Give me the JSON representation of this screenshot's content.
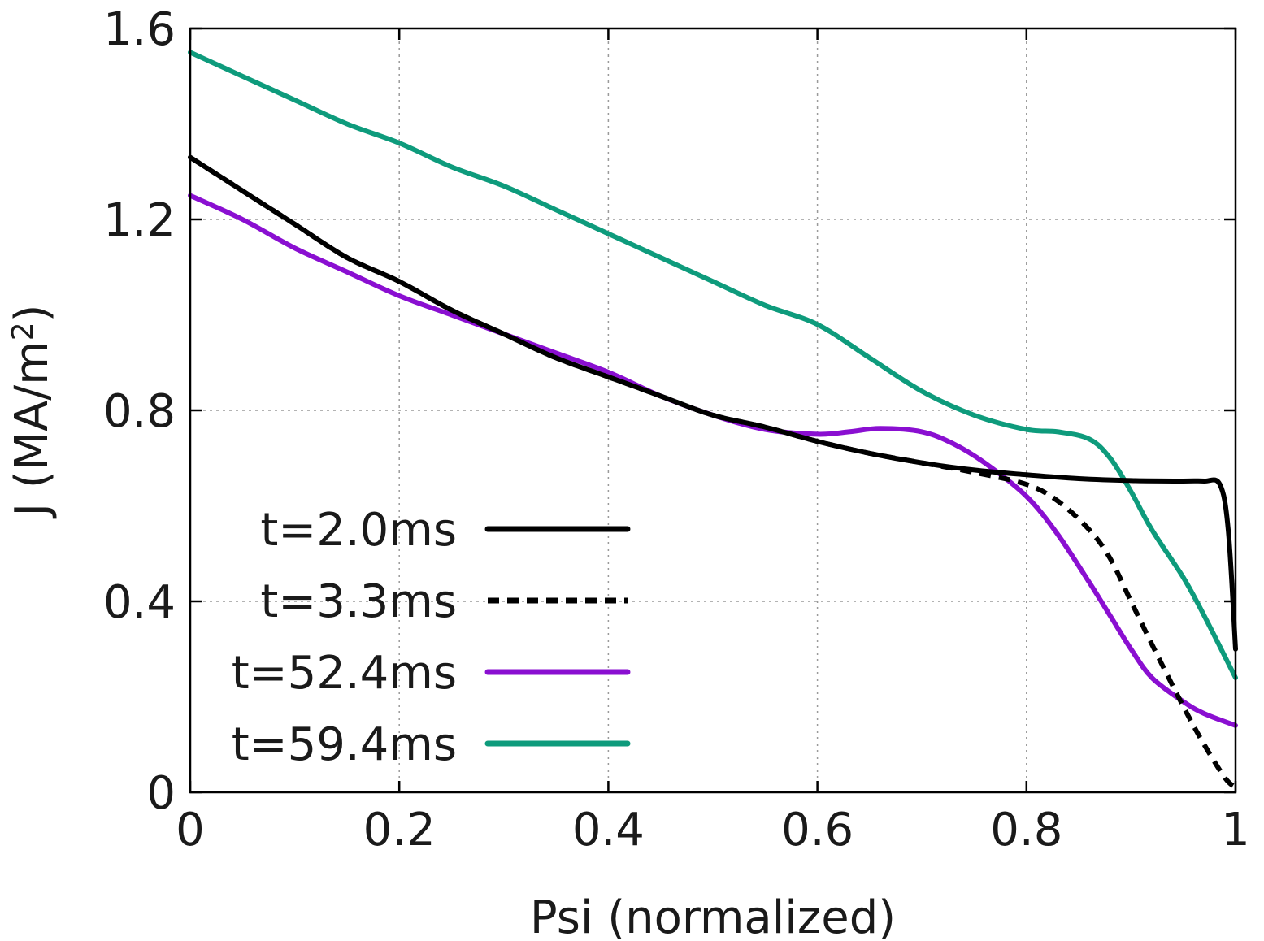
{
  "chart_data": {
    "type": "line",
    "title": "",
    "xlabel": "Psi (normalized)",
    "ylabel_main": "J (MA/m",
    "ylabel_sup": "2",
    "ylabel_close": ")",
    "xlim": [
      0,
      1
    ],
    "ylim": [
      0,
      1.6
    ],
    "grid": true,
    "legend_position": "bottom-left",
    "x_ticks": [
      {
        "value": 0,
        "label": "0"
      },
      {
        "value": 0.2,
        "label": "0.2"
      },
      {
        "value": 0.4,
        "label": "0.4"
      },
      {
        "value": 0.6,
        "label": "0.6"
      },
      {
        "value": 0.8,
        "label": "0.8"
      },
      {
        "value": 1,
        "label": "1"
      }
    ],
    "y_ticks": [
      {
        "value": 0,
        "label": "0"
      },
      {
        "value": 0.4,
        "label": "0.4"
      },
      {
        "value": 0.8,
        "label": "0.8"
      },
      {
        "value": 1.2,
        "label": "1.2"
      },
      {
        "value": 1.6,
        "label": "1.6"
      }
    ],
    "series": [
      {
        "name": "t=2.0ms",
        "color": "#000000",
        "dash": "solid",
        "x": [
          0,
          0.05,
          0.1,
          0.15,
          0.2,
          0.25,
          0.3,
          0.35,
          0.4,
          0.45,
          0.5,
          0.55,
          0.6,
          0.65,
          0.7,
          0.75,
          0.8,
          0.85,
          0.9,
          0.95,
          0.97,
          0.985,
          0.993,
          1.0
        ],
        "y": [
          1.33,
          1.26,
          1.19,
          1.12,
          1.07,
          1.01,
          0.96,
          0.91,
          0.87,
          0.83,
          0.79,
          0.765,
          0.735,
          0.71,
          0.69,
          0.675,
          0.665,
          0.657,
          0.653,
          0.652,
          0.652,
          0.645,
          0.55,
          0.3
        ]
      },
      {
        "name": "t=3.3ms",
        "color": "#000000",
        "dash": "dashed",
        "x": [
          0,
          0.05,
          0.1,
          0.15,
          0.2,
          0.25,
          0.3,
          0.35,
          0.4,
          0.45,
          0.5,
          0.55,
          0.6,
          0.65,
          0.7,
          0.75,
          0.8,
          0.83,
          0.86,
          0.88,
          0.9,
          0.92,
          0.95,
          0.97,
          0.99,
          1.0
        ],
        "y": [
          1.33,
          1.26,
          1.19,
          1.12,
          1.07,
          1.01,
          0.96,
          0.91,
          0.87,
          0.83,
          0.79,
          0.765,
          0.735,
          0.71,
          0.69,
          0.67,
          0.645,
          0.61,
          0.55,
          0.49,
          0.4,
          0.31,
          0.18,
          0.1,
          0.03,
          0.01
        ]
      },
      {
        "name": "t=52.4ms",
        "color": "#8a0fd1",
        "dash": "solid",
        "x": [
          0,
          0.05,
          0.1,
          0.15,
          0.2,
          0.25,
          0.3,
          0.35,
          0.4,
          0.45,
          0.5,
          0.55,
          0.6,
          0.63,
          0.66,
          0.7,
          0.73,
          0.76,
          0.8,
          0.83,
          0.86,
          0.88,
          0.9,
          0.92,
          0.95,
          0.97,
          1.0
        ],
        "y": [
          1.25,
          1.2,
          1.14,
          1.09,
          1.04,
          1.0,
          0.96,
          0.92,
          0.88,
          0.83,
          0.79,
          0.76,
          0.75,
          0.755,
          0.762,
          0.755,
          0.73,
          0.69,
          0.62,
          0.54,
          0.44,
          0.37,
          0.3,
          0.24,
          0.19,
          0.165,
          0.14
        ]
      },
      {
        "name": "t=59.4ms",
        "color": "#0e9b7c",
        "dash": "solid",
        "x": [
          0,
          0.05,
          0.1,
          0.15,
          0.2,
          0.25,
          0.3,
          0.35,
          0.4,
          0.45,
          0.5,
          0.55,
          0.6,
          0.65,
          0.7,
          0.75,
          0.8,
          0.83,
          0.86,
          0.88,
          0.9,
          0.92,
          0.95,
          0.97,
          1.0
        ],
        "y": [
          1.55,
          1.5,
          1.45,
          1.4,
          1.36,
          1.31,
          1.27,
          1.22,
          1.17,
          1.12,
          1.07,
          1.02,
          0.98,
          0.91,
          0.84,
          0.79,
          0.76,
          0.755,
          0.74,
          0.7,
          0.63,
          0.55,
          0.45,
          0.37,
          0.24
        ]
      }
    ]
  }
}
